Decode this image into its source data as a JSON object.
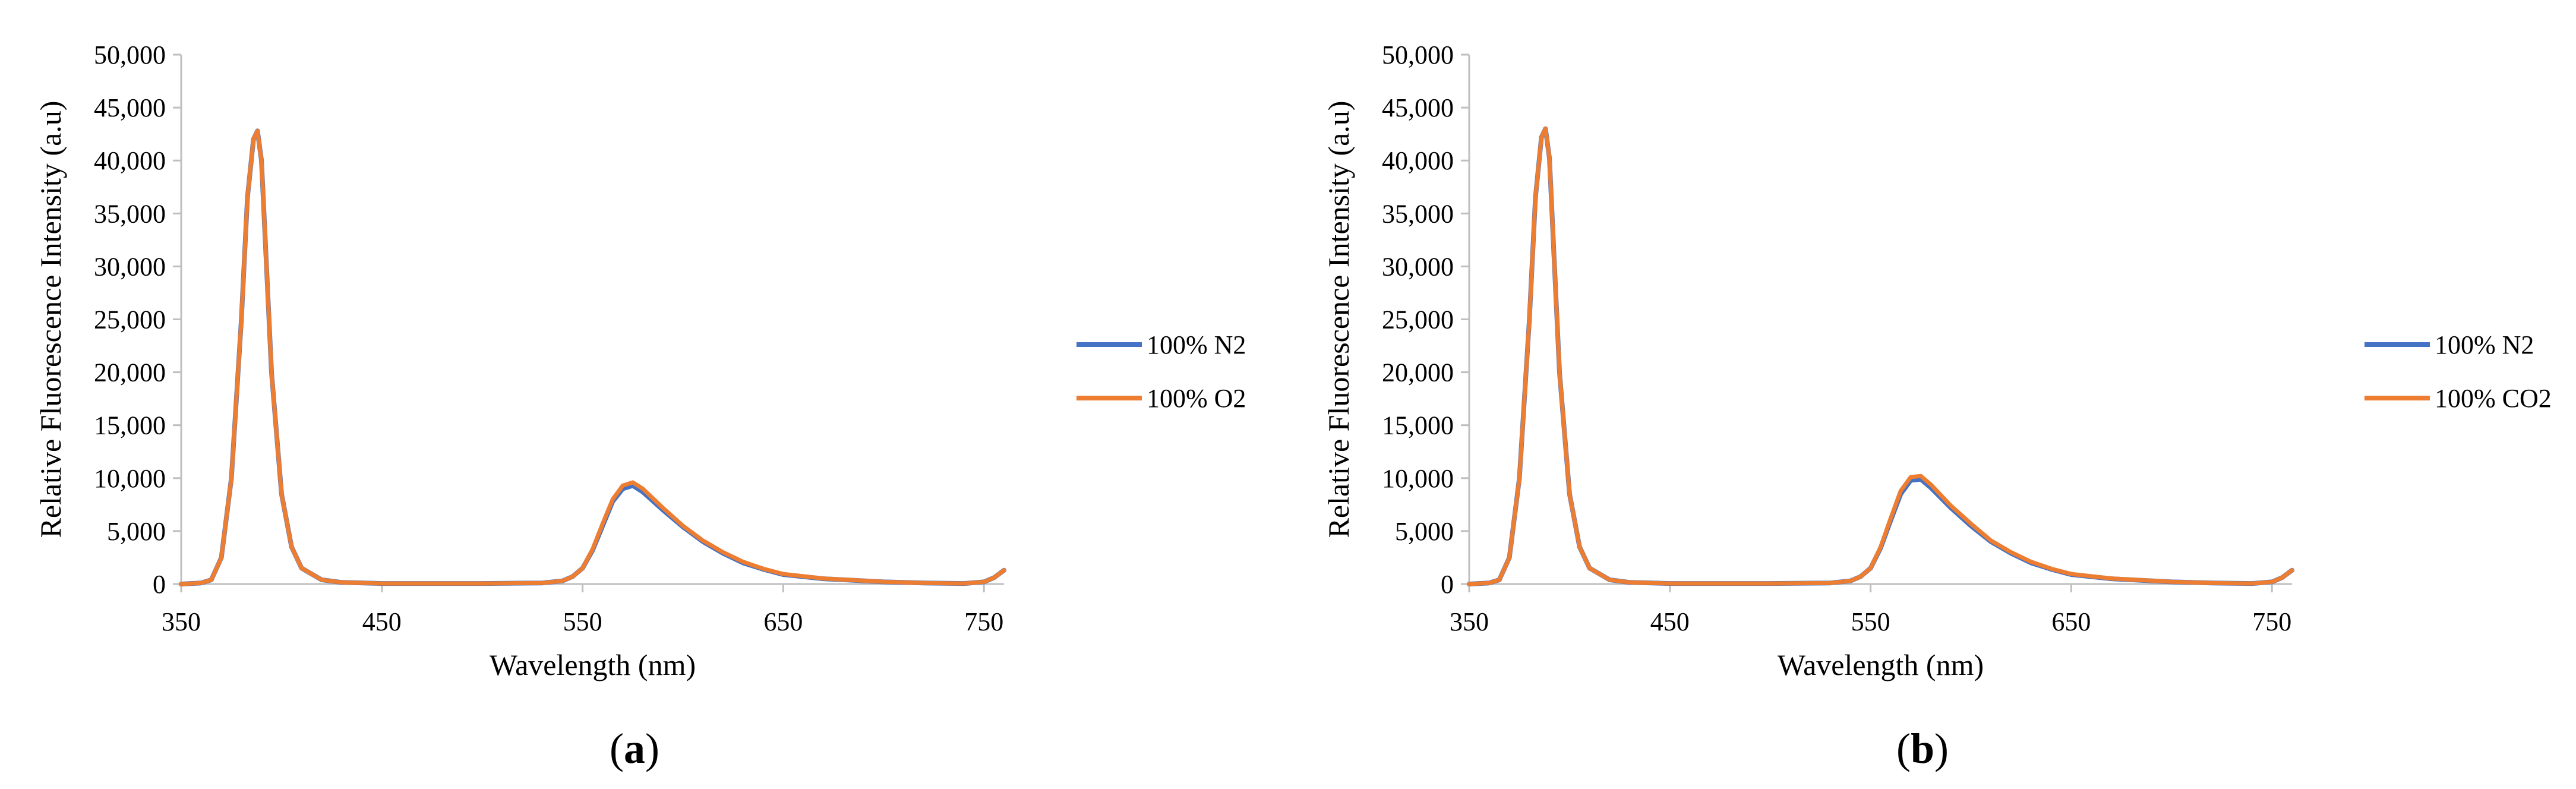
{
  "colors": {
    "n2": "#4472C4",
    "second": "#ED7D31",
    "axis": "#BFBFBF"
  },
  "chart_data": [
    {
      "type": "line",
      "panel_label": "a",
      "xlabel": "Wavelength (nm)",
      "ylabel": "Relative Fluorescence Intensity (a.u)",
      "xlim": [
        350,
        760
      ],
      "ylim": [
        0,
        50000
      ],
      "xticks": [
        350,
        450,
        550,
        650,
        750
      ],
      "xtick_labels": [
        "350",
        "450",
        "550",
        "650",
        "750"
      ],
      "yticks": [
        0,
        5000,
        10000,
        15000,
        20000,
        25000,
        30000,
        35000,
        40000,
        45000,
        50000
      ],
      "ytick_labels": [
        "0",
        "5,000",
        "10,000",
        "15,000",
        "20,000",
        "25,000",
        "30,000",
        "35,000",
        "40,000",
        "45,000",
        "50,000"
      ],
      "legend_position": "right",
      "x": [
        350,
        360,
        365,
        370,
        375,
        380,
        383,
        386,
        388,
        390,
        392,
        395,
        400,
        405,
        410,
        420,
        430,
        450,
        500,
        530,
        540,
        545,
        550,
        555,
        560,
        565,
        570,
        575,
        580,
        590,
        600,
        610,
        620,
        630,
        640,
        650,
        670,
        700,
        720,
        740,
        750,
        755,
        760
      ],
      "series": [
        {
          "name": "100% N2",
          "color_key": "n2",
          "values": [
            0,
            100,
            400,
            2500,
            10000,
            25000,
            36500,
            42000,
            42800,
            40000,
            32000,
            20000,
            8500,
            3500,
            1500,
            400,
            150,
            50,
            50,
            100,
            300,
            700,
            1500,
            3200,
            5500,
            7800,
            9000,
            9300,
            8700,
            7000,
            5400,
            4000,
            2900,
            2000,
            1400,
            900,
            500,
            200,
            100,
            50,
            200,
            600,
            1300
          ]
        },
        {
          "name": "100% O2",
          "color_key": "second",
          "values": [
            0,
            100,
            400,
            2500,
            10000,
            25000,
            36500,
            42000,
            42800,
            40000,
            32000,
            20000,
            8500,
            3500,
            1500,
            400,
            150,
            50,
            50,
            100,
            300,
            700,
            1500,
            3300,
            5700,
            8000,
            9300,
            9600,
            9000,
            7200,
            5500,
            4100,
            3000,
            2100,
            1450,
            950,
            520,
            210,
            100,
            50,
            200,
            600,
            1300
          ]
        }
      ]
    },
    {
      "type": "line",
      "panel_label": "b",
      "xlabel": "Wavelength (nm)",
      "ylabel": "Relative Fluorescence Intensity (a.u)",
      "xlim": [
        350,
        760
      ],
      "ylim": [
        0,
        50000
      ],
      "xticks": [
        350,
        450,
        550,
        650,
        750
      ],
      "xtick_labels": [
        "350",
        "450",
        "550",
        "650",
        "750"
      ],
      "yticks": [
        0,
        5000,
        10000,
        15000,
        20000,
        25000,
        30000,
        35000,
        40000,
        45000,
        50000
      ],
      "ytick_labels": [
        "0",
        "5,000",
        "10,000",
        "15,000",
        "20,000",
        "25,000",
        "30,000",
        "35,000",
        "40,000",
        "45,000",
        "50,000"
      ],
      "legend_position": "right",
      "x": [
        350,
        360,
        365,
        370,
        375,
        380,
        383,
        386,
        388,
        390,
        392,
        395,
        400,
        405,
        410,
        420,
        430,
        450,
        500,
        530,
        540,
        545,
        550,
        555,
        560,
        565,
        570,
        575,
        580,
        590,
        600,
        610,
        620,
        630,
        640,
        650,
        670,
        700,
        720,
        740,
        750,
        755,
        760
      ],
      "series": [
        {
          "name": "100% N2",
          "color_key": "n2",
          "values": [
            0,
            100,
            400,
            2500,
            10000,
            25000,
            36500,
            42200,
            43000,
            40200,
            32000,
            20000,
            8500,
            3500,
            1500,
            400,
            150,
            50,
            50,
            100,
            300,
            700,
            1500,
            3400,
            6000,
            8500,
            9800,
            9900,
            9100,
            7200,
            5500,
            4000,
            2900,
            2000,
            1400,
            900,
            500,
            200,
            100,
            50,
            200,
            600,
            1300
          ]
        },
        {
          "name": "100% CO2",
          "color_key": "second",
          "values": [
            0,
            100,
            400,
            2500,
            10000,
            25000,
            36500,
            42200,
            43000,
            40200,
            32000,
            20000,
            8500,
            3500,
            1500,
            400,
            150,
            50,
            50,
            100,
            300,
            700,
            1500,
            3500,
            6200,
            8800,
            10100,
            10200,
            9400,
            7400,
            5700,
            4100,
            3000,
            2100,
            1450,
            950,
            520,
            210,
            100,
            50,
            200,
            600,
            1300
          ]
        }
      ]
    }
  ]
}
